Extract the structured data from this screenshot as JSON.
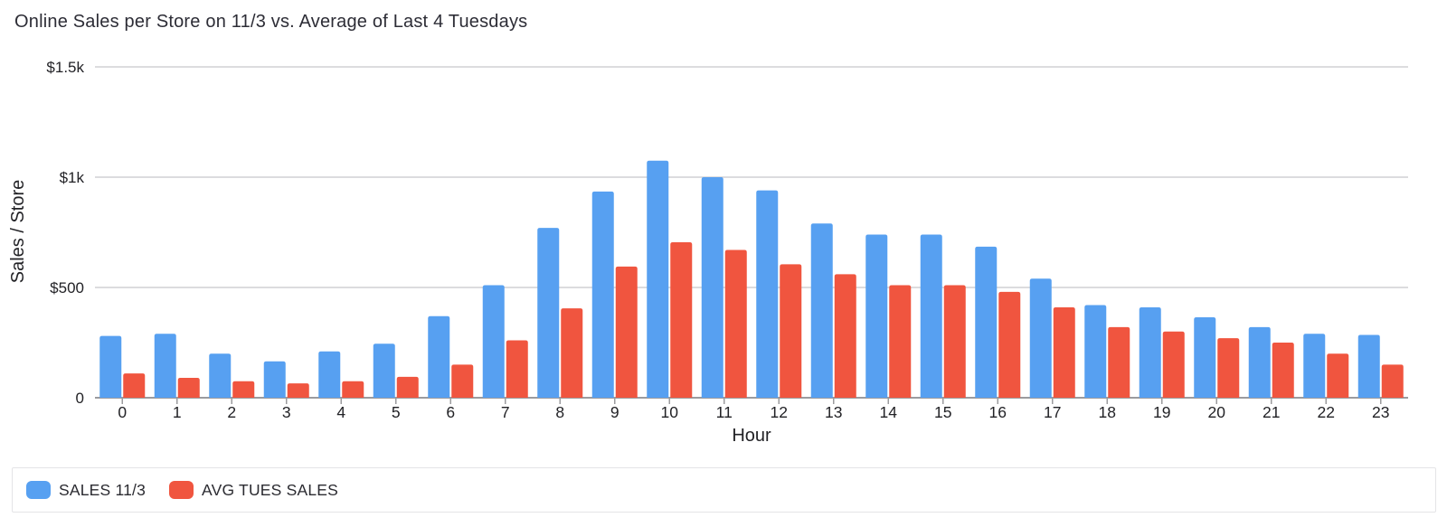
{
  "title": "Online Sales per Store on 11/3 vs. Average of Last 4 Tuesdays",
  "chart_data": {
    "type": "bar",
    "title": "Online Sales per Store on 11/3 vs. Average of Last 4 Tuesdays",
    "xlabel": "Hour",
    "ylabel": "Sales / Store",
    "categories": [
      "0",
      "1",
      "2",
      "3",
      "4",
      "5",
      "6",
      "7",
      "8",
      "9",
      "10",
      "11",
      "12",
      "13",
      "14",
      "15",
      "16",
      "17",
      "18",
      "19",
      "20",
      "21",
      "22",
      "23"
    ],
    "series": [
      {
        "name": "SALES 11/3",
        "color": "#57A0F1",
        "values": [
          280,
          290,
          200,
          165,
          210,
          245,
          370,
          510,
          770,
          935,
          1075,
          1000,
          940,
          790,
          740,
          740,
          685,
          540,
          420,
          410,
          365,
          320,
          290,
          285
        ]
      },
      {
        "name": "AVG TUES SALES",
        "color": "#F0553F",
        "values": [
          110,
          90,
          75,
          65,
          75,
          95,
          150,
          260,
          405,
          595,
          705,
          670,
          605,
          560,
          510,
          510,
          480,
          410,
          320,
          300,
          270,
          250,
          200,
          150
        ]
      }
    ],
    "ylim": [
      0,
      1500
    ],
    "yticks": [
      {
        "label": "0",
        "value": 0
      },
      {
        "label": "$500",
        "value": 500
      },
      {
        "label": "$1k",
        "value": 1000
      },
      {
        "label": "$1.5k",
        "value": 1500
      }
    ],
    "grid": true,
    "legend_position": "bottom"
  },
  "style": {
    "gridline_color": "#c7c7c9",
    "axis_color": "#9b9b9e",
    "tick_label_color": "#222226",
    "title_color": "#2d2d36"
  }
}
